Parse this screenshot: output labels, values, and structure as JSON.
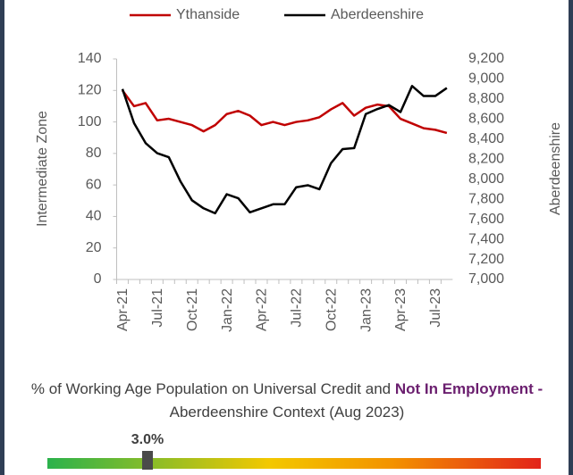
{
  "chart_data": {
    "type": "line",
    "categories": [
      "Apr-21",
      null,
      null,
      "Jul-21",
      null,
      null,
      "Oct-21",
      null,
      null,
      "Jan-22",
      null,
      null,
      "Apr-22",
      null,
      null,
      "Jul-22",
      null,
      null,
      "Oct-22",
      null,
      null,
      "Jan-23",
      null,
      null,
      "Apr-23",
      null,
      null,
      "Jul-23",
      null
    ],
    "series": [
      {
        "name": "Ythanside",
        "color": "#c00000",
        "values": [
          120,
          110,
          112,
          101,
          102,
          100,
          98,
          94,
          98,
          105,
          107,
          104,
          98,
          100,
          98,
          100,
          101,
          103,
          108,
          112,
          104,
          109,
          111,
          110,
          102,
          99,
          96,
          95,
          93
        ]
      },
      {
        "name": "Aberdeenshire",
        "color": "#000000",
        "axis": "y2",
        "values": [
          8900,
          8560,
          8360,
          8260,
          8220,
          7980,
          7790,
          7710,
          7660,
          7850,
          7810,
          7670,
          7710,
          7750,
          7750,
          7920,
          7940,
          7900,
          8160,
          8300,
          8310,
          8650,
          8700,
          8740,
          8670,
          8930,
          8830,
          8830,
          8910
        ]
      }
    ],
    "ylabel": "Intermediate Zone",
    "y2label": "Aberdeenshire",
    "ylim": [
      0,
      140
    ],
    "yticks": [
      0,
      20,
      40,
      60,
      80,
      100,
      120,
      140
    ],
    "y2lim": [
      7000,
      9200
    ],
    "y2ticks": [
      {
        "value": 7000,
        "label": "7,000"
      },
      {
        "value": 7200,
        "label": "7,200"
      },
      {
        "value": 7400,
        "label": "7,400"
      },
      {
        "value": 7600,
        "label": "7,600"
      },
      {
        "value": 7800,
        "label": "7,800"
      },
      {
        "value": 8000,
        "label": "8,000"
      },
      {
        "value": 8200,
        "label": "8,200"
      },
      {
        "value": 8400,
        "label": "8,400"
      },
      {
        "value": 8600,
        "label": "8,600"
      },
      {
        "value": 8800,
        "label": "8,800"
      },
      {
        "value": 9000,
        "label": "9,000"
      },
      {
        "value": 9200,
        "label": "9,200"
      }
    ],
    "grid": false,
    "legend": "top"
  },
  "gauge": {
    "text_start": "% of Working Age Population on Universal Credit and",
    "text_emphasis": "Not In Employment -",
    "text_end": "Aberdeenshire Context (Aug 2023)",
    "value": 3,
    "value_label": "3.0%"
  }
}
